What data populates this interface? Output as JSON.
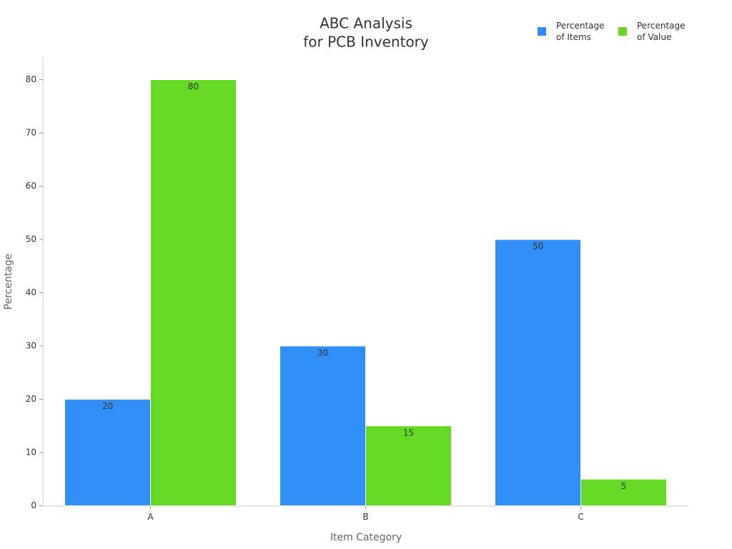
{
  "chart_data": {
    "type": "bar",
    "title": [
      "ABC Analysis",
      "for PCB Inventory"
    ],
    "x_label": "Item Category",
    "y_label": "Percentage",
    "categories": [
      "A",
      "B",
      "C"
    ],
    "series": [
      {
        "name": "Percentage of Items",
        "color": "#2f8ff5",
        "values": [
          20,
          30,
          50
        ]
      },
      {
        "name": "Percentage of Value",
        "color": "#66d926",
        "values": [
          80,
          15,
          5
        ]
      }
    ],
    "ylim": [
      0,
      84
    ],
    "yticks": [
      0,
      10,
      20,
      30,
      40,
      50,
      60,
      70,
      80
    ],
    "legend": "top-right"
  }
}
